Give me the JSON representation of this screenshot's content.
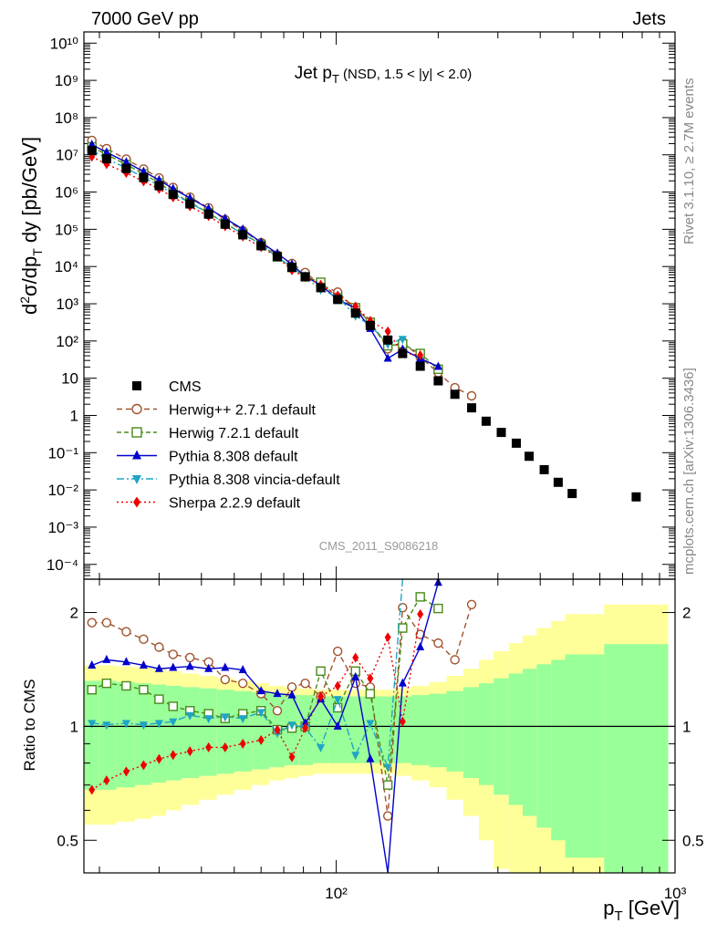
{
  "header": {
    "left": "7000 GeV pp",
    "right": "Jets"
  },
  "side": {
    "rivet": "Rivet 3.1.10, ≥ 2.7M events",
    "mcplots": "mcplots.cern.ch [arXiv:1306.3436]"
  },
  "watermark": "CMS_2011_S9086218",
  "chart_data": {
    "type": "line",
    "title": "Jet p_T (NSD, 1.5 < |y| < 2.0)",
    "xlabel": "p_T [GeV]",
    "xscale": "log",
    "xlim": [
      18,
      1000
    ],
    "xticks": [
      {
        "v": 100,
        "label": "10²"
      },
      {
        "v": 1000,
        "label": "10³"
      }
    ],
    "main": {
      "ylabel": "d²σ/dp_T dy [pb/GeV]",
      "yscale": "log",
      "ylim": [
        4e-05,
        20000000000
      ],
      "yticks": [
        {
          "v": 0.0001,
          "label": "10⁻⁴"
        },
        {
          "v": 0.001,
          "label": "10⁻³"
        },
        {
          "v": 0.01,
          "label": "10⁻²"
        },
        {
          "v": 0.1,
          "label": "10⁻¹"
        },
        {
          "v": 1,
          "label": "1"
        },
        {
          "v": 10,
          "label": "10"
        },
        {
          "v": 100,
          "label": "10²"
        },
        {
          "v": 1000,
          "label": "10³"
        },
        {
          "v": 10000,
          "label": "10⁴"
        },
        {
          "v": 100000,
          "label": "10⁵"
        },
        {
          "v": 1000000,
          "label": "10⁶"
        },
        {
          "v": 10000000,
          "label": "10⁷"
        },
        {
          "v": 100000000,
          "label": "10⁸"
        },
        {
          "v": 1000000000,
          "label": "10⁹"
        },
        {
          "v": 10000000000,
          "label": "10¹⁰"
        }
      ],
      "x": [
        19,
        21,
        24,
        27,
        30,
        33,
        37,
        42,
        47,
        53,
        60,
        67,
        74,
        81,
        90,
        101,
        114,
        126,
        142,
        157,
        177,
        200,
        224,
        251,
        277,
        307,
        340,
        371,
        411,
        452,
        497,
        768
      ],
      "cms": [
        13000000,
        7800000,
        4300000,
        2450000,
        1480000,
        860000,
        480000,
        255000,
        137000,
        71000,
        36000,
        18500,
        9500,
        5300,
        2700,
        1300,
        560,
        260,
        106,
        46,
        21,
        8.5,
        3.7,
        1.6,
        0.7,
        0.35,
        0.18,
        0.08,
        0.035,
        0.016,
        0.008,
        0.0065
      ],
      "ratio_x_count": 21,
      "legend_position": "bottom-left"
    },
    "ratio": {
      "ylabel": "Ratio to CMS",
      "yscale": "log",
      "ylim": [
        0.41,
        2.45
      ],
      "yticks": [
        {
          "v": 0.5,
          "label": "0.5"
        },
        {
          "v": 1,
          "label": "1"
        },
        {
          "v": 2,
          "label": "2"
        }
      ],
      "band_inner": [
        0.32,
        0.32,
        0.31,
        0.3,
        0.29,
        0.28,
        0.27,
        0.26,
        0.25,
        0.24,
        0.23,
        0.22,
        0.21,
        0.21,
        0.2,
        0.2,
        0.2,
        0.2,
        0.2,
        0.2,
        0.21,
        0.22,
        0.24,
        0.27,
        0.3,
        0.34,
        0.38,
        0.42,
        0.46,
        0.5,
        0.55,
        0.65
      ],
      "band_outer": [
        0.45,
        0.45,
        0.44,
        0.43,
        0.42,
        0.4,
        0.38,
        0.36,
        0.34,
        0.32,
        0.3,
        0.28,
        0.27,
        0.26,
        0.25,
        0.25,
        0.25,
        0.25,
        0.25,
        0.26,
        0.28,
        0.31,
        0.36,
        0.42,
        0.5,
        0.58,
        0.66,
        0.74,
        0.82,
        0.9,
        0.98,
        1.1
      ]
    },
    "series": [
      {
        "name": "Herwig++ 2.7.1 default",
        "color": "#a0522d",
        "dash": "6,4",
        "marker": "open-circle",
        "ratio": [
          1.88,
          1.88,
          1.78,
          1.7,
          1.62,
          1.55,
          1.52,
          1.48,
          1.33,
          1.3,
          1.22,
          1.1,
          1.27,
          1.3,
          1.2,
          1.58,
          1.3,
          1.27,
          0.58,
          2.06,
          1.75,
          1.66,
          1.5,
          2.1,
          null,
          null,
          null,
          null,
          null,
          null,
          null,
          null
        ]
      },
      {
        "name": "Herwig 7.2.1 default",
        "color": "#4a8a1a",
        "dash": "5,3",
        "marker": "open-square",
        "ratio": [
          1.25,
          1.3,
          1.28,
          1.25,
          1.18,
          1.13,
          1.1,
          1.08,
          1.05,
          1.08,
          1.1,
          0.98,
          0.99,
          1.0,
          1.4,
          1.12,
          1.4,
          1.22,
          0.7,
          1.82,
          2.2,
          2.05,
          null,
          null,
          null,
          null,
          null,
          null,
          null,
          null,
          null,
          null
        ]
      },
      {
        "name": "Pythia 8.308 default",
        "color": "#0000cc",
        "dash": "",
        "marker": "triangle-up",
        "ratio": [
          1.45,
          1.5,
          1.48,
          1.45,
          1.42,
          1.43,
          1.44,
          1.42,
          1.43,
          1.41,
          1.24,
          1.22,
          1.21,
          1.02,
          1.18,
          1.0,
          1.35,
          0.82,
          0.32,
          1.3,
          1.62,
          2.4,
          null,
          null,
          null,
          null,
          null,
          null,
          null,
          null,
          null,
          null
        ]
      },
      {
        "name": "Pythia 8.308 vincia-default",
        "color": "#1fa5c5",
        "dash": "8,3,2,3",
        "marker": "triangle-down",
        "ratio": [
          1.02,
          1.01,
          1.02,
          1.01,
          1.02,
          1.03,
          1.07,
          1.05,
          1.06,
          1.05,
          1.09,
          0.96,
          1.01,
          0.99,
          0.88,
          1.18,
          0.84,
          1.02,
          0.78,
          2.45,
          null,
          null,
          null,
          null,
          null,
          null,
          null,
          null,
          null,
          null,
          null,
          null
        ]
      },
      {
        "name": "Sherpa 2.2.9 default",
        "color": "#ee0000",
        "dash": "2,3",
        "marker": "diamond",
        "ratio": [
          0.68,
          0.72,
          0.76,
          0.79,
          0.82,
          0.84,
          0.86,
          0.88,
          0.88,
          0.9,
          0.92,
          0.98,
          0.83,
          0.99,
          1.2,
          1.28,
          1.52,
          1.34,
          1.72,
          1.03,
          1.98,
          null,
          null,
          null,
          null,
          null,
          null,
          null,
          null,
          null,
          null,
          null
        ]
      }
    ]
  }
}
